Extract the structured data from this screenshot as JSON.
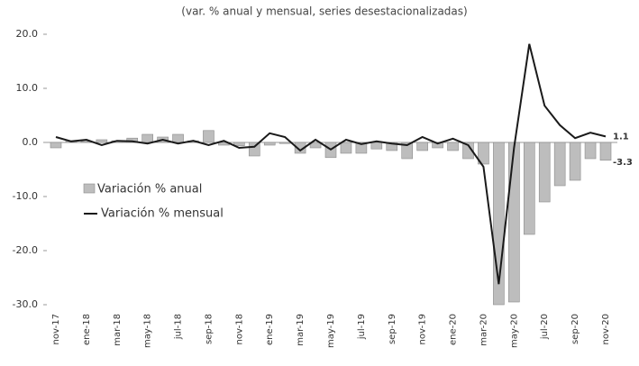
{
  "chart_data": {
    "type": "bar_line",
    "title": "(var. % anual y mensual, series desestacionalizadas)",
    "categories": [
      "nov-17",
      null,
      "ene-18",
      null,
      "mar-18",
      null,
      "may-18",
      null,
      "jul-18",
      null,
      "sep-18",
      null,
      "nov-18",
      null,
      "ene-19",
      null,
      "mar-19",
      null,
      "may-19",
      null,
      "jul-19",
      null,
      "sep-19",
      null,
      "nov-19",
      null,
      "ene-20",
      null,
      "mar-20",
      null,
      "may-20",
      null,
      "jul-20",
      null,
      "sep-20",
      null,
      "nov-20"
    ],
    "series": [
      {
        "name": "Variación % anual",
        "type": "bar",
        "color": "#bdbdbd",
        "values": [
          -1.0,
          0.3,
          0.2,
          0.5,
          0.3,
          0.8,
          1.5,
          1.0,
          1.5,
          0.3,
          2.2,
          -0.5,
          -0.6,
          -2.5,
          -0.5,
          -0.2,
          -2.0,
          -1.0,
          -2.8,
          -2.0,
          -2.0,
          -1.2,
          -1.5,
          -3.0,
          -1.5,
          -1.0,
          -1.5,
          -3.0,
          -4.0,
          -30.0,
          -29.5,
          -17.0,
          -11.0,
          -8.0,
          -7.0,
          -3.0,
          -3.3
        ]
      },
      {
        "name": "Variación % mensual",
        "type": "line",
        "color": "#1a1a1a",
        "values": [
          1.0,
          0.2,
          0.5,
          -0.5,
          0.3,
          0.2,
          -0.2,
          0.5,
          -0.2,
          0.3,
          -0.5,
          0.3,
          -1.0,
          -0.8,
          1.7,
          1.0,
          -1.5,
          0.5,
          -1.3,
          0.5,
          -0.3,
          0.2,
          -0.2,
          -0.5,
          1.0,
          -0.2,
          0.7,
          -0.5,
          -4.5,
          -26.2,
          -1.0,
          18.2,
          6.8,
          3.2,
          0.8,
          1.8,
          1.1
        ]
      }
    ],
    "ylim": [
      -30,
      20
    ],
    "yticks": [
      {
        "value": -30,
        "label": "-30.0"
      },
      {
        "value": -20,
        "label": "-20.0"
      },
      {
        "value": -10,
        "label": "-10.0"
      },
      {
        "value": 0,
        "label": "0.0"
      },
      {
        "value": 10,
        "label": "10.0"
      },
      {
        "value": 20,
        "label": "20.0"
      }
    ],
    "legend": "left"
  }
}
